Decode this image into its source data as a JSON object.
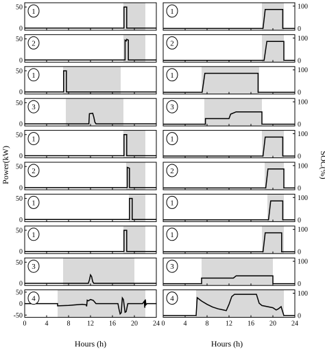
{
  "chart_data": {
    "type": "line",
    "x_range": [
      0,
      24
    ],
    "x_ticks": [
      0,
      4,
      8,
      12,
      16,
      20,
      24
    ],
    "xlabel_left": "Hours (h)",
    "xlabel_right": "Hours (h)",
    "ylabel_left": "Power(kW)",
    "ylabel_right": "SOC(%)",
    "left_yticks": [
      0,
      50
    ],
    "left_yticks_last": [
      -50,
      0,
      50
    ],
    "right_yticks": [
      0,
      100
    ],
    "rows": [
      {
        "label": "1",
        "shade": [
          18,
          22
        ],
        "power": [
          [
            0,
            0
          ],
          [
            18.1,
            0
          ],
          [
            18.1,
            50
          ],
          [
            18.6,
            50
          ],
          [
            18.6,
            0
          ],
          [
            24,
            0
          ]
        ],
        "soc": [
          [
            0,
            0
          ],
          [
            18.2,
            0
          ],
          [
            18.6,
            85
          ],
          [
            21.8,
            85
          ],
          [
            21.8,
            0
          ],
          [
            24,
            0
          ]
        ]
      },
      {
        "label": "2",
        "shade": [
          18,
          22
        ],
        "power": [
          [
            0,
            0
          ],
          [
            18.3,
            0
          ],
          [
            18.3,
            47
          ],
          [
            18.5,
            45
          ],
          [
            18.6,
            49
          ],
          [
            18.9,
            47
          ],
          [
            18.9,
            0
          ],
          [
            24,
            0
          ]
        ],
        "soc": [
          [
            0,
            0
          ],
          [
            18.4,
            0
          ],
          [
            18.9,
            85
          ],
          [
            22,
            85
          ],
          [
            22,
            0
          ],
          [
            24,
            0
          ]
        ]
      },
      {
        "label": "1",
        "shade": [
          7,
          17.5
        ],
        "power": [
          [
            0,
            0
          ],
          [
            7.1,
            0
          ],
          [
            7.1,
            50
          ],
          [
            7.6,
            50
          ],
          [
            7.6,
            0
          ],
          [
            24,
            0
          ]
        ],
        "soc": [
          [
            0,
            0
          ],
          [
            7.1,
            0
          ],
          [
            7.6,
            85
          ],
          [
            17.3,
            85
          ],
          [
            17.3,
            0
          ],
          [
            24,
            0
          ]
        ]
      },
      {
        "label": "3",
        "shade": [
          7.5,
          18
        ],
        "power": [
          [
            0,
            0
          ],
          [
            11.7,
            0
          ],
          [
            11.8,
            24
          ],
          [
            12.4,
            25
          ],
          [
            12.6,
            16
          ],
          [
            12.8,
            4
          ],
          [
            13,
            0
          ],
          [
            24,
            0
          ]
        ],
        "soc": [
          [
            0,
            0
          ],
          [
            7.7,
            0
          ],
          [
            7.7,
            25
          ],
          [
            12,
            25
          ],
          [
            12.3,
            45
          ],
          [
            13.3,
            55
          ],
          [
            18,
            55
          ],
          [
            18,
            0
          ],
          [
            24,
            0
          ]
        ]
      },
      {
        "label": "1",
        "shade": [
          18,
          22
        ],
        "power": [
          [
            0,
            0
          ],
          [
            18.1,
            0
          ],
          [
            18.1,
            50
          ],
          [
            18.6,
            50
          ],
          [
            18.6,
            0
          ],
          [
            24,
            0
          ]
        ],
        "soc": [
          [
            0,
            0
          ],
          [
            18.2,
            0
          ],
          [
            18.6,
            85
          ],
          [
            21.8,
            85
          ],
          [
            21.8,
            0
          ],
          [
            24,
            0
          ]
        ]
      },
      {
        "label": "2",
        "shade": [
          18.5,
          22
        ],
        "power": [
          [
            0,
            0
          ],
          [
            18.7,
            0
          ],
          [
            18.7,
            48
          ],
          [
            19.1,
            46
          ],
          [
            19.1,
            0
          ],
          [
            24,
            0
          ]
        ],
        "soc": [
          [
            0,
            0
          ],
          [
            18.7,
            0
          ],
          [
            19.1,
            85
          ],
          [
            22,
            85
          ],
          [
            22,
            0
          ],
          [
            24,
            0
          ]
        ]
      },
      {
        "label": "1",
        "shade": [
          19,
          22
        ],
        "power": [
          [
            0,
            0
          ],
          [
            19.1,
            0
          ],
          [
            19.1,
            50
          ],
          [
            19.6,
            50
          ],
          [
            19.6,
            0
          ],
          [
            24,
            0
          ]
        ],
        "soc": [
          [
            0,
            0
          ],
          [
            19.2,
            0
          ],
          [
            19.6,
            85
          ],
          [
            21.8,
            85
          ],
          [
            21.8,
            0
          ],
          [
            24,
            0
          ]
        ]
      },
      {
        "label": "1",
        "shade": [
          18,
          22
        ],
        "power": [
          [
            0,
            0
          ],
          [
            18.1,
            0
          ],
          [
            18.1,
            50
          ],
          [
            18.6,
            50
          ],
          [
            18.6,
            0
          ],
          [
            24,
            0
          ]
        ],
        "soc": [
          [
            0,
            0
          ],
          [
            18.2,
            0
          ],
          [
            18.6,
            85
          ],
          [
            21.6,
            85
          ],
          [
            21.6,
            0
          ],
          [
            24,
            0
          ]
        ]
      },
      {
        "label": "3",
        "shade": [
          7,
          20
        ],
        "power": [
          [
            0,
            0
          ],
          [
            11.6,
            0
          ],
          [
            11.8,
            8
          ],
          [
            12,
            20
          ],
          [
            12.2,
            16
          ],
          [
            12.4,
            4
          ],
          [
            12.6,
            0
          ],
          [
            24,
            0
          ]
        ],
        "soc": [
          [
            0,
            0
          ],
          [
            7,
            0
          ],
          [
            7,
            25
          ],
          [
            12.8,
            25
          ],
          [
            13.3,
            35
          ],
          [
            20,
            35
          ],
          [
            20,
            0
          ],
          [
            24,
            0
          ]
        ]
      },
      {
        "label": "4",
        "shade": [
          6,
          22
        ],
        "power": [
          [
            0,
            0
          ],
          [
            6,
            0
          ],
          [
            6,
            -10
          ],
          [
            8,
            -8
          ],
          [
            9.5,
            -5
          ],
          [
            10.5,
            -3
          ],
          [
            11.2,
            -5
          ],
          [
            11.3,
            -12
          ],
          [
            11.4,
            15
          ],
          [
            11.6,
            12
          ],
          [
            12,
            18
          ],
          [
            12.5,
            14
          ],
          [
            13,
            0
          ],
          [
            17,
            0
          ],
          [
            17.2,
            -25
          ],
          [
            17.4,
            -45
          ],
          [
            17.6,
            -40
          ],
          [
            17.8,
            25
          ],
          [
            18,
            18
          ],
          [
            18.3,
            -38
          ],
          [
            18.5,
            -35
          ],
          [
            18.8,
            0
          ],
          [
            21.5,
            0
          ],
          [
            21.8,
            10
          ],
          [
            21.9,
            -18
          ],
          [
            22,
            18
          ],
          [
            22.1,
            -5
          ],
          [
            22.3,
            0
          ],
          [
            24,
            0
          ]
        ],
        "soc": [
          [
            0,
            0
          ],
          [
            6,
            0
          ],
          [
            6.2,
            80
          ],
          [
            7,
            65
          ],
          [
            8,
            50
          ],
          [
            9,
            38
          ],
          [
            10,
            30
          ],
          [
            11,
            25
          ],
          [
            11.5,
            22
          ],
          [
            12,
            50
          ],
          [
            12.5,
            85
          ],
          [
            13,
            95
          ],
          [
            17,
            95
          ],
          [
            17.5,
            55
          ],
          [
            18,
            45
          ],
          [
            19,
            40
          ],
          [
            20,
            35
          ],
          [
            20.6,
            25
          ],
          [
            21,
            30
          ],
          [
            21.5,
            40
          ],
          [
            22,
            0
          ],
          [
            24,
            0
          ]
        ]
      }
    ]
  }
}
